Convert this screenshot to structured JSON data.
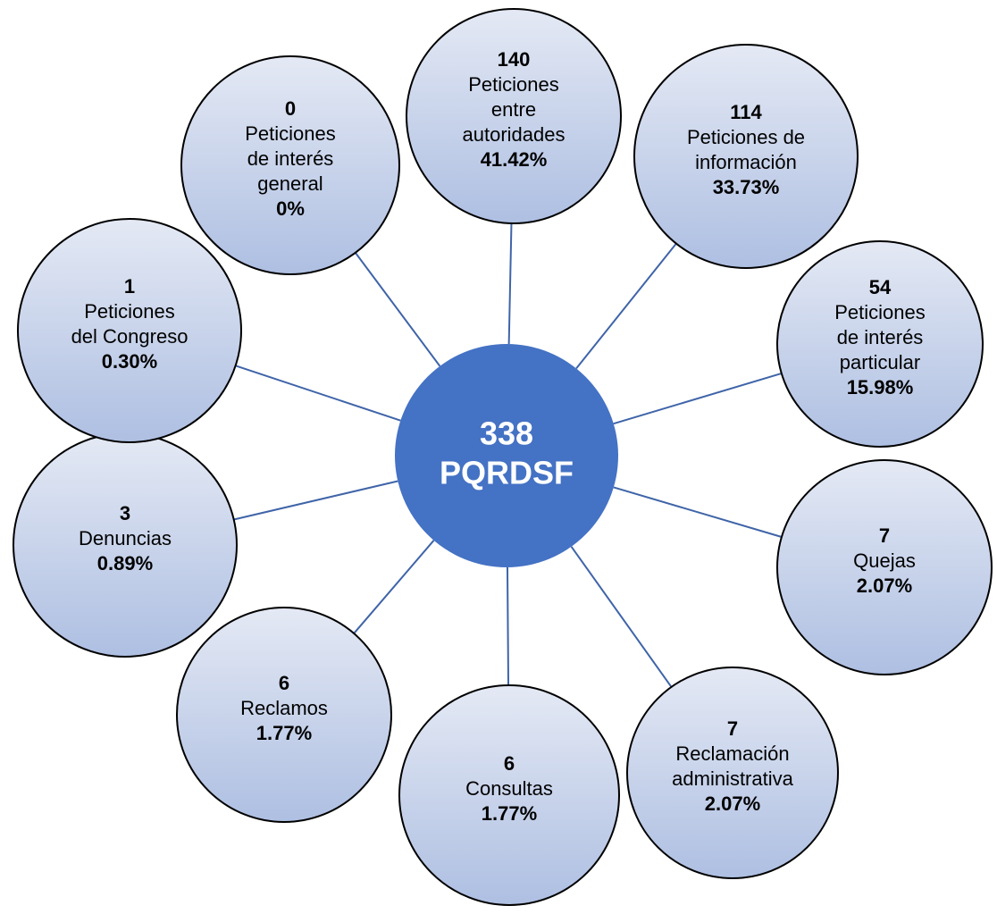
{
  "center": {
    "count": "338",
    "label": "PQRDSF"
  },
  "nodes": [
    {
      "count": "0",
      "label_lines": [
        "Peticiones",
        "de interés",
        "general"
      ],
      "percent": "0%"
    },
    {
      "count": "140",
      "label_lines": [
        "Peticiones",
        "entre",
        "autoridades"
      ],
      "percent": "41.42%"
    },
    {
      "count": "114",
      "label_lines": [
        "Peticiones de",
        "información"
      ],
      "percent": "33.73%"
    },
    {
      "count": "54",
      "label_lines": [
        "Peticiones",
        "de interés",
        "particular"
      ],
      "percent": "15.98%"
    },
    {
      "count": "7",
      "label_lines": [
        "Quejas"
      ],
      "percent": "2.07%"
    },
    {
      "count": "7",
      "label_lines": [
        "Reclamación",
        "administrativa"
      ],
      "percent": "2.07%"
    },
    {
      "count": "6",
      "label_lines": [
        "Consultas"
      ],
      "percent": "1.77%"
    },
    {
      "count": "6",
      "label_lines": [
        "Reclamos"
      ],
      "percent": "1.77%"
    },
    {
      "count": "3",
      "label_lines": [
        "Denuncias"
      ],
      "percent": "0.89%"
    },
    {
      "count": "1",
      "label_lines": [
        "Peticiones",
        "del Congreso"
      ],
      "percent": "0.30%"
    }
  ]
}
